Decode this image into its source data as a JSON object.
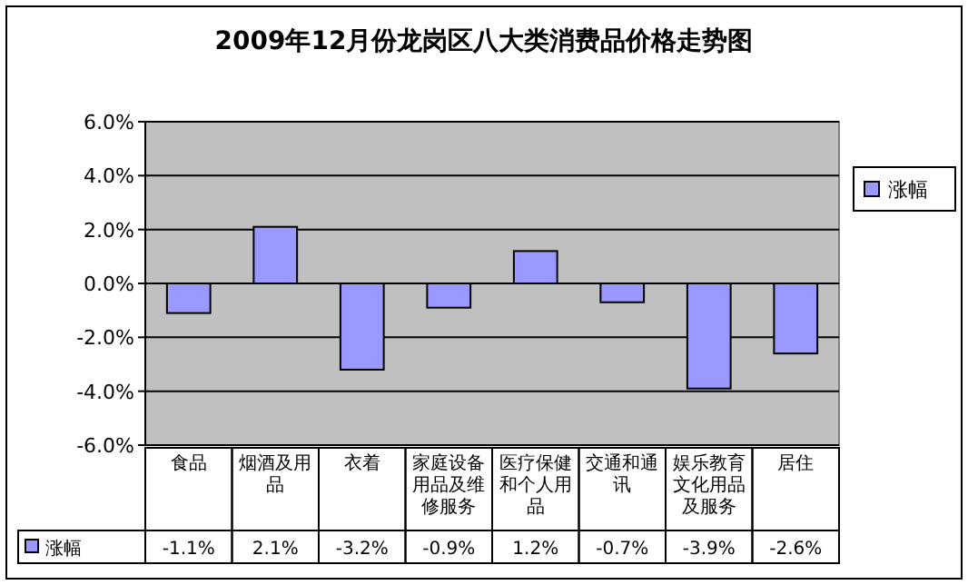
{
  "chart_data": {
    "type": "bar",
    "title": "2009年12月份龙岗区八大类消费品价格走势图",
    "categories": [
      "食品",
      "烟酒及用品",
      "衣着",
      "家庭设备用品及维修服务",
      "医疗保健和个人用品",
      "交通和通讯",
      "娱乐教育文化用品及服务",
      "居住"
    ],
    "series": [
      {
        "name": "涨幅",
        "color": "#9999ff",
        "values": [
          -1.1,
          2.1,
          -3.2,
          -0.9,
          1.2,
          -0.7,
          -3.9,
          -2.6
        ],
        "value_labels": [
          "-1.1%",
          "2.1%",
          "-3.2%",
          "-0.9%",
          "1.2%",
          "-0.7%",
          "-3.9%",
          "-2.6%"
        ]
      }
    ],
    "ylim": [
      -6,
      6
    ],
    "yticks": [
      {
        "value": -6,
        "label": "-6.0%"
      },
      {
        "value": -4,
        "label": "-4.0%"
      },
      {
        "value": -2,
        "label": "-2.0%"
      },
      {
        "value": 0,
        "label": "0.0%"
      },
      {
        "value": 2,
        "label": "2.0%"
      },
      {
        "value": 4,
        "label": "4.0%"
      },
      {
        "value": 6,
        "label": "6.0%"
      }
    ],
    "grid": "y",
    "legend": "right"
  }
}
